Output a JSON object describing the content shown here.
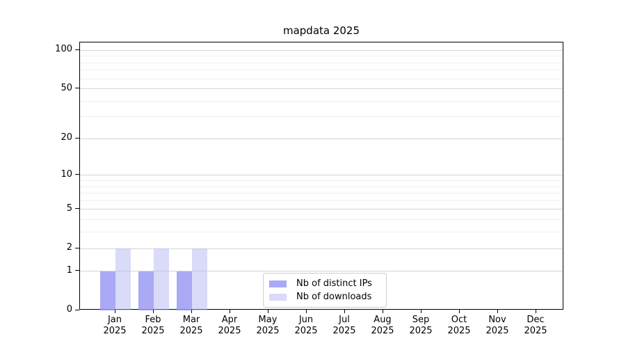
{
  "chart_data": {
    "type": "bar",
    "title": "mapdata 2025",
    "categories": [
      "Jan",
      "Feb",
      "Mar",
      "Apr",
      "May",
      "Jun",
      "Jul",
      "Aug",
      "Sep",
      "Oct",
      "Nov",
      "Dec"
    ],
    "x_tick_year": "2025",
    "series": [
      {
        "name": "Nb of distinct IPs",
        "color": "#a9a9f6",
        "values": [
          1,
          1,
          1,
          0,
          0,
          0,
          0,
          0,
          0,
          0,
          0,
          0
        ]
      },
      {
        "name": "Nb of downloads",
        "color": "#dadaf9",
        "values": [
          2,
          2,
          2,
          0,
          0,
          0,
          0,
          0,
          0,
          0,
          0,
          0
        ]
      }
    ],
    "y_axis": {
      "scale": "log1p",
      "min": 0,
      "max": 115,
      "tick_values": [
        0,
        1,
        2,
        5,
        10,
        20,
        50,
        100
      ],
      "tick_labels": [
        "0",
        "1",
        "2",
        "5",
        "10",
        "20",
        "50",
        "100"
      ],
      "minor_tick_values": [
        3,
        4,
        6,
        7,
        8,
        9,
        30,
        40,
        60,
        70,
        80,
        90
      ]
    },
    "grid": "horizontal",
    "legend_position": "lower center"
  },
  "colors": {
    "major_grid": "#d4d4d4",
    "minor_grid": "#efefef",
    "spine": "#000000",
    "background": "#ffffff"
  }
}
